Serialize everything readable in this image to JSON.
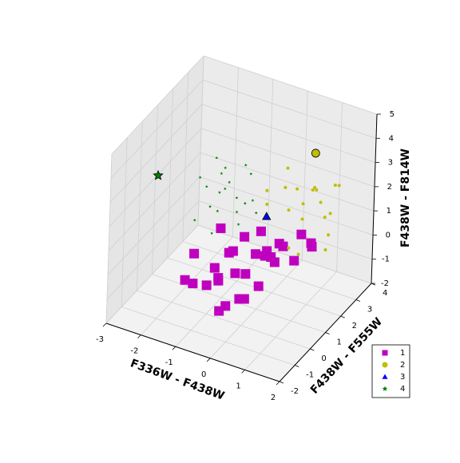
{
  "chart_data": {
    "type": "scatter3d",
    "xlabel": "F336W - F438W",
    "ylabel": "F438W - F555W",
    "zlabel": "F438W - F814W",
    "xlim": [
      -3,
      2
    ],
    "ylim": [
      -2,
      4
    ],
    "zlim": [
      -2,
      5
    ],
    "xticks": [
      -3,
      -2,
      -1,
      0,
      1,
      2
    ],
    "yticks": [
      -2,
      -1,
      0,
      1,
      2,
      3,
      4
    ],
    "zticks": [
      -2,
      -1,
      0,
      1,
      2,
      3,
      4,
      5
    ],
    "grid": true,
    "legend": "lower right",
    "series": [
      {
        "name": "1",
        "color": "#bf00bf",
        "marker": "square",
        "x": [
          -1.2,
          -0.8,
          -0.5,
          -0.3,
          0,
          0.2,
          0.5,
          0.8,
          -1,
          -0.6,
          -0.2,
          0.1,
          0.4,
          0.7,
          1,
          -1.4,
          -0.9,
          -0.4,
          0,
          0.3,
          0.6,
          -1.1,
          -0.7,
          -0.1,
          0.2,
          0.9,
          -0.5,
          -1.3,
          0.5,
          0
        ],
        "y": [
          -0.5,
          0,
          0.5,
          -0.8,
          0.2,
          1,
          1.5,
          2,
          0.8,
          -0.2,
          0.3,
          0.6,
          1.2,
          1.8,
          2.2,
          0,
          0.5,
          1,
          -0.5,
          0.4,
          1,
          0.2,
          0.7,
          1.4,
          -0.3,
          2.5,
          0.1,
          -0.8,
          0.7,
          1.6
        ],
        "z": [
          -0.5,
          0,
          0.5,
          -1,
          0,
          0.3,
          0.5,
          0.8,
          1,
          -0.3,
          -1.2,
          0.6,
          0,
          -0.2,
          0.4,
          0.3,
          -0.8,
          0.8,
          0.5,
          -0.5,
          1,
          -1,
          0.2,
          0.9,
          -0.6,
          0,
          -1.5,
          -0.2,
          0.6,
          0
        ]
      },
      {
        "name": "2",
        "color": "#bfbf00",
        "marker": "circle",
        "x": [
          0,
          0.3,
          0.6,
          0.9,
          1.2,
          1.5,
          0.2,
          0.5,
          0.8,
          1.1,
          1.4,
          0.1,
          0.4,
          0.7,
          1,
          1.3,
          0.6,
          0.9,
          0.3,
          1.2
        ],
        "y": [
          1.5,
          2,
          2.5,
          3,
          3.5,
          2,
          1,
          1.8,
          2.8,
          3.2,
          2.4,
          2.6,
          3,
          1.4,
          2.2,
          3,
          3.4,
          1.6,
          2.8,
          2.6
        ],
        "z": [
          2,
          2.5,
          1,
          1.5,
          2,
          0.5,
          3,
          1.8,
          2.2,
          1,
          0.8,
          2.8,
          1.2,
          0.6,
          2.6,
          2.4,
          1.6,
          0.3,
          1.9,
          1.3
        ],
        "center": {
          "x": 0.5,
          "y": 3.5,
          "z": 3
        }
      },
      {
        "name": "3",
        "color": "#0000ff",
        "marker": "triangle",
        "center": {
          "x": 0,
          "y": 1.5,
          "z": 1.5
        }
      },
      {
        "name": "4",
        "color": "#008000",
        "marker": "star",
        "x": [
          -1.5,
          -1.2,
          -1,
          -0.8,
          -0.5,
          -0.3,
          -1.3,
          -0.9,
          -0.6,
          -1.1,
          -0.7,
          -0.4,
          -1.4,
          -1,
          -0.2,
          -0.8,
          -0.5,
          -1.2,
          -0.9,
          -0.6
        ],
        "y": [
          0.2,
          0.5,
          1,
          0.8,
          1.2,
          1.5,
          0,
          0.4,
          0.9,
          0.6,
          1.1,
          1.3,
          0.7,
          0.2,
          1,
          0.5,
          0.8,
          1.2,
          0.3,
          1.4
        ],
        "z": [
          1.5,
          2,
          2.5,
          3,
          2,
          1.5,
          3.5,
          2.8,
          1.8,
          4,
          2.2,
          3.2,
          2.6,
          1.2,
          2.4,
          3.8,
          1.4,
          2.9,
          2.1,
          3.4
        ],
        "center": {
          "x": -2.5,
          "y": 0,
          "z": 3
        }
      }
    ]
  }
}
